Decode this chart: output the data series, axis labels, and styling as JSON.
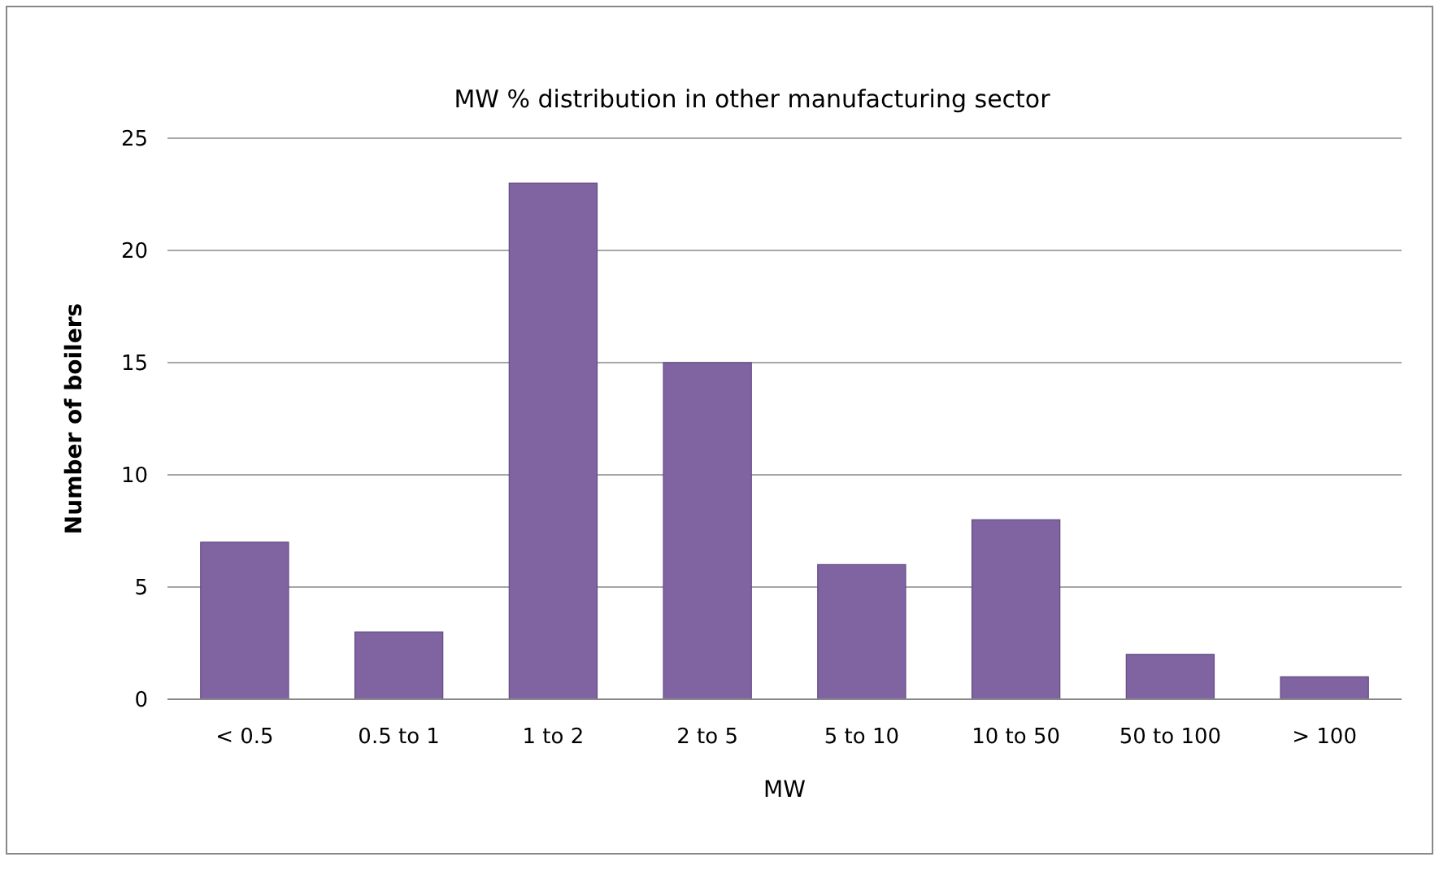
{
  "chart_data": {
    "type": "bar",
    "title": "MW % distribution in other manufacturing sector",
    "xlabel": "MW",
    "ylabel": "Number of boilers",
    "categories": [
      "< 0.5",
      "0.5 to 1",
      "1 to 2",
      "2 to 5",
      "5 to 10",
      "10 to 50",
      "50 to 100",
      "> 100"
    ],
    "values": [
      7,
      3,
      23,
      15,
      6,
      8,
      2,
      1
    ],
    "color": "#8064a2",
    "ylim": [
      0,
      25
    ],
    "yticks": [
      0,
      5,
      10,
      15,
      20,
      25
    ],
    "grid": "y"
  }
}
